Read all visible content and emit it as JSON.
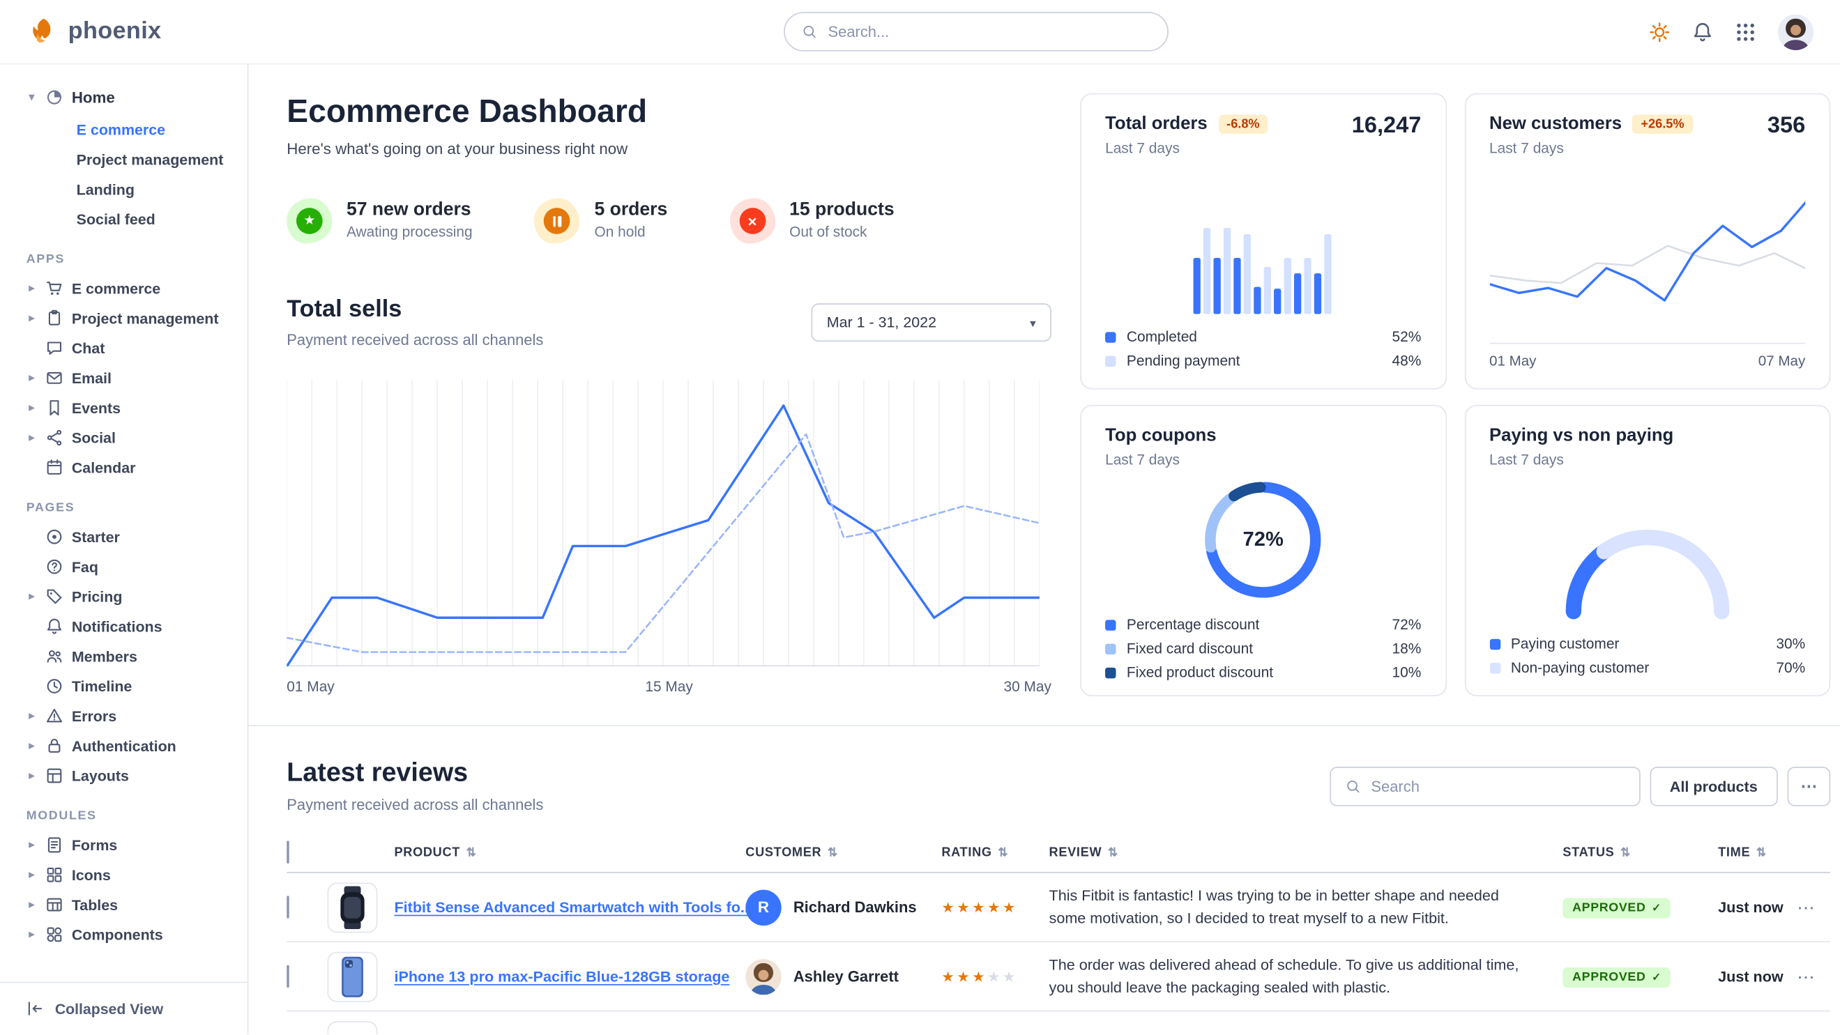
{
  "colors": {
    "primary": "#3874ff",
    "warning_badge_bg": "#ffefca",
    "warning_badge_text": "#bc3803",
    "success_badge_bg": "#d9fbd0",
    "success_badge_text": "#1c6c09",
    "star": "#e5780b"
  },
  "topbar": {
    "brand": "phoenix",
    "search_placeholder": "Search..."
  },
  "sidebar": {
    "home": {
      "label": "Home",
      "children": [
        {
          "label": "E commerce",
          "active": true
        },
        {
          "label": "Project management"
        },
        {
          "label": "Landing"
        },
        {
          "label": "Social feed"
        }
      ]
    },
    "sections": [
      {
        "title": "APPS",
        "items": [
          {
            "label": "E commerce"
          },
          {
            "label": "Project management"
          },
          {
            "label": "Chat"
          },
          {
            "label": "Email"
          },
          {
            "label": "Events"
          },
          {
            "label": "Social"
          },
          {
            "label": "Calendar"
          }
        ]
      },
      {
        "title": "PAGES",
        "items": [
          {
            "label": "Starter"
          },
          {
            "label": "Faq"
          },
          {
            "label": "Pricing"
          },
          {
            "label": "Notifications"
          },
          {
            "label": "Members"
          },
          {
            "label": "Timeline"
          },
          {
            "label": "Errors"
          },
          {
            "label": "Authentication"
          },
          {
            "label": "Layouts"
          }
        ]
      },
      {
        "title": "MODULES",
        "items": [
          {
            "label": "Forms"
          },
          {
            "label": "Icons"
          },
          {
            "label": "Tables"
          },
          {
            "label": "Components"
          }
        ]
      }
    ],
    "collapsed_label": "Collapsed View"
  },
  "page": {
    "title": "Ecommerce Dashboard",
    "subtitle": "Here's what's going on at your business right now"
  },
  "stats": [
    {
      "value": "57 new orders",
      "caption": "Awating processing"
    },
    {
      "value": "5 orders",
      "caption": "On hold"
    },
    {
      "value": "15 products",
      "caption": "Out of stock"
    }
  ],
  "total_sells": {
    "title": "Total sells",
    "caption": "Payment received across all channels",
    "date_range": "Mar 1 - 31, 2022",
    "x_labels": [
      "01 May",
      "15 May",
      "30 May"
    ]
  },
  "cards": {
    "total_orders": {
      "title": "Total orders",
      "badge": "-6.8%",
      "caption": "Last 7 days",
      "value": "16,247",
      "legend": [
        {
          "label": "Completed",
          "value": "52%"
        },
        {
          "label": "Pending payment",
          "value": "48%"
        }
      ]
    },
    "new_customers": {
      "title": "New customers",
      "badge": "+26.5%",
      "caption": "Last 7 days",
      "value": "356",
      "x_labels": [
        "01 May",
        "07 May"
      ]
    },
    "top_coupons": {
      "title": "Top coupons",
      "caption": "Last 7 days",
      "center_value": "72%",
      "legend": [
        {
          "label": "Percentage discount",
          "value": "72%"
        },
        {
          "label": "Fixed card discount",
          "value": "18%"
        },
        {
          "label": "Fixed product discount",
          "value": "10%"
        }
      ]
    },
    "paying": {
      "title": "Paying vs non paying",
      "caption": "Last 7 days",
      "legend": [
        {
          "label": "Paying customer",
          "value": "30%"
        },
        {
          "label": "Non-paying customer",
          "value": "70%"
        }
      ]
    }
  },
  "reviews": {
    "title": "Latest reviews",
    "caption": "Payment received across all channels",
    "search_placeholder": "Search",
    "all_products_label": "All products",
    "columns": [
      "PRODUCT",
      "CUSTOMER",
      "RATING",
      "REVIEW",
      "STATUS",
      "TIME"
    ],
    "rows": [
      {
        "product": "Fitbit Sense Advanced Smartwatch with Tools fo...",
        "customer": "Richard Dawkins",
        "avatar_initial": "R",
        "rating": 5,
        "review": "This Fitbit is fantastic! I was trying to be in better shape and needed some motivation, so I decided to treat myself to a new Fitbit.",
        "status": "APPROVED",
        "time": "Just now"
      },
      {
        "product": "iPhone 13 pro max-Pacific Blue-128GB storage",
        "customer": "Ashley Garrett",
        "rating": 3,
        "review": "The order was delivered ahead of schedule. To give us additional time, you should leave the packaging sealed with plastic.",
        "status": "APPROVED",
        "time": "Just now"
      }
    ]
  },
  "charts": {
    "total_sells": {
      "type": "line",
      "x_range": [
        "01 May",
        "30 May"
      ],
      "series": [
        {
          "name": "current",
          "color": "#3874ff",
          "width": 2,
          "x": [
            0,
            6,
            12,
            20,
            34,
            38,
            45,
            56,
            66,
            72,
            78,
            86,
            90,
            100
          ],
          "v": [
            0,
            24,
            24,
            17,
            17,
            42,
            42,
            51,
            91,
            57,
            47,
            17,
            24,
            24
          ]
        },
        {
          "name": "previous",
          "color": "#9ab6fb",
          "width": 1.5,
          "dash": "5 3",
          "x": [
            0,
            10,
            45,
            69,
            74,
            78,
            90,
            100
          ],
          "v": [
            10,
            5,
            5,
            81,
            45,
            47,
            56,
            50
          ]
        }
      ]
    },
    "orders_bars": {
      "type": "bar",
      "values": [
        62,
        95,
        62,
        95,
        62,
        88,
        30,
        52,
        28,
        62,
        45,
        62,
        45,
        88
      ],
      "colors": [
        "#3874ff",
        "#d3e0ff"
      ]
    },
    "new_customers": {
      "type": "line",
      "series": [
        {
          "name": "previous",
          "color": "#d8dce4",
          "width": 1.5,
          "v": [
            32,
            28,
            26,
            42,
            40,
            56,
            46,
            40,
            50,
            36
          ]
        },
        {
          "name": "current",
          "color": "#3874ff",
          "width": 2,
          "v": [
            25,
            18,
            22,
            15,
            38,
            28,
            12,
            50,
            72,
            55,
            68,
            95
          ]
        }
      ]
    },
    "coupons_donut": {
      "type": "donut",
      "segments": [
        {
          "label": "Percentage discount",
          "value": 72,
          "color": "#3874ff"
        },
        {
          "label": "Fixed card discount",
          "value": 18,
          "color": "#9fc2f9"
        },
        {
          "label": "Fixed product discount",
          "value": 10,
          "color": "#1c4f93"
        }
      ]
    },
    "paying_gauge": {
      "type": "gauge",
      "segments": [
        {
          "label": "Paying customer",
          "value": 30,
          "color": "#3874ff"
        },
        {
          "label": "Non-paying customer",
          "value": 70,
          "color": "#d9e2ff"
        }
      ]
    }
  }
}
